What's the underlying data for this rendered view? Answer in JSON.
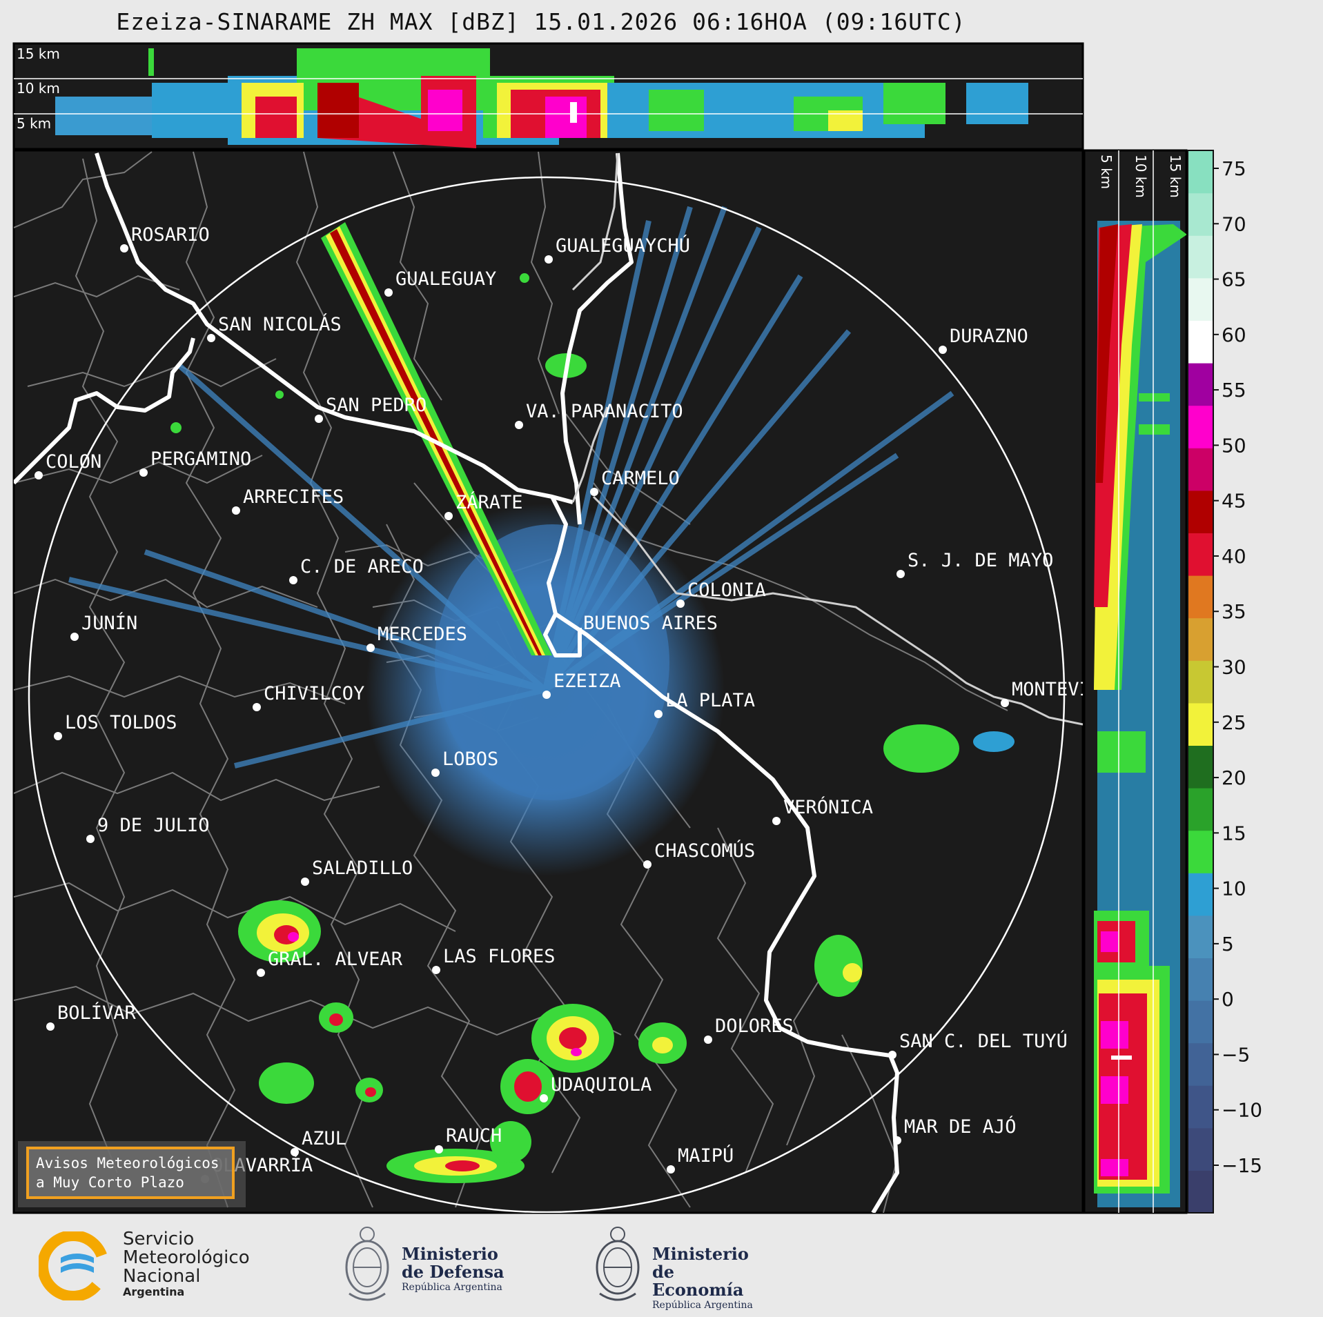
{
  "title": "Ezeiza-SINARAME ZH MAX [dBZ] 15.01.2026 06:16HOA (09:16UTC)",
  "height_panel": {
    "labels": [
      "15 km",
      "10 km",
      "5 km"
    ],
    "right_labels": [
      "5 km",
      "10 km",
      "15 km"
    ]
  },
  "colorbar": {
    "ticks": [
      "75",
      "70",
      "65",
      "60",
      "55",
      "50",
      "45",
      "40",
      "35",
      "30",
      "25",
      "20",
      "15",
      "10",
      "5",
      "0",
      "−5",
      "−10",
      "−15"
    ],
    "colors": [
      "#3a3f6b",
      "#3d4a7a",
      "#3f5588",
      "#416396",
      "#4372a4",
      "#4681b0",
      "#4b92bd",
      "#2e9fd3",
      "#3bd93b",
      "#2aa22a",
      "#1f6e1f",
      "#f2f23a",
      "#c8c832",
      "#d8a030",
      "#e07820",
      "#e01030",
      "#b00000",
      "#cc0066",
      "#ff00cc",
      "#a000a0",
      "#ffffff",
      "#e8f8f0",
      "#c8f0e0",
      "#a8e8d0",
      "#88e0c0"
    ],
    "units": "dBZ"
  },
  "cities": [
    {
      "name": "ROSARIO"
    },
    {
      "name": "GUALEGUAYCHÚ"
    },
    {
      "name": "GUALEGUAY"
    },
    {
      "name": "SAN NICOLÁS"
    },
    {
      "name": "DURAZNO"
    },
    {
      "name": "SAN PEDRO"
    },
    {
      "name": "VA. PARANACITO"
    },
    {
      "name": "COLON"
    },
    {
      "name": "PERGAMINO"
    },
    {
      "name": "CARMELO"
    },
    {
      "name": "ARRECIFES"
    },
    {
      "name": "ZÁRATE"
    },
    {
      "name": "S. J. DE MAYO"
    },
    {
      "name": "C. DE ARECO"
    },
    {
      "name": "COLONIA"
    },
    {
      "name": "JUNÍN"
    },
    {
      "name": "BUENOS AIRES"
    },
    {
      "name": "MERCEDES"
    },
    {
      "name": "EZEIZA"
    },
    {
      "name": "MONTEVIDEO"
    },
    {
      "name": "CHIVILCOY"
    },
    {
      "name": "LA PLATA"
    },
    {
      "name": "LOS TOLDOS"
    },
    {
      "name": "LOBOS"
    },
    {
      "name": "VERÓNICA"
    },
    {
      "name": "9 DE JULIO"
    },
    {
      "name": "CHASCOMÚS"
    },
    {
      "name": "SALADILLO"
    },
    {
      "name": "GRAL. ALVEAR"
    },
    {
      "name": "LAS FLORES"
    },
    {
      "name": "BOLÍVAR"
    },
    {
      "name": "DOLORES"
    },
    {
      "name": "SAN C. DEL TUYÚ"
    },
    {
      "name": "UDAQUIOLA"
    },
    {
      "name": "AZUL"
    },
    {
      "name": "RAUCH"
    },
    {
      "name": "MAR DE AJÓ"
    },
    {
      "name": "OLAVARRÍA"
    },
    {
      "name": "MAIPÚ"
    }
  ],
  "warning": {
    "line1": "Avisos Meteorológicos",
    "line2": "a Muy Corto Plazo"
  },
  "logos": {
    "smn": {
      "line1": "Servicio",
      "line2": "Meteorológico",
      "line3": "Nacional",
      "line4": "Argentina"
    },
    "defensa": {
      "line1": "Ministerio",
      "line2": "de Defensa",
      "line3": "República Argentina"
    },
    "economia": {
      "line1": "Ministerio",
      "line2": "de Economía",
      "line3": "República Argentina"
    }
  }
}
